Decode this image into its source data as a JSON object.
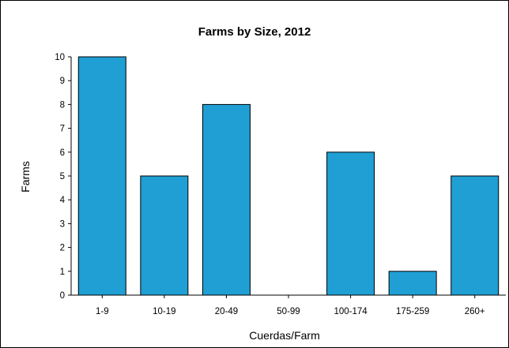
{
  "chart_data": {
    "type": "bar",
    "title": "Farms by Size, 2012",
    "xlabel": "Cuerdas/Farm",
    "ylabel": "Farms",
    "categories": [
      "1-9",
      "10-19",
      "20-49",
      "50-99",
      "100-174",
      "175-259",
      "260+"
    ],
    "values": [
      10,
      5,
      8,
      0,
      6,
      1,
      5
    ],
    "ylim": [
      0,
      10
    ],
    "yticks": [
      0,
      1,
      2,
      3,
      4,
      5,
      6,
      7,
      8,
      9,
      10
    ],
    "grid": false,
    "legend": "none",
    "colors": {
      "bar": "#1f9fd3",
      "bar_edge": "#000000"
    }
  }
}
